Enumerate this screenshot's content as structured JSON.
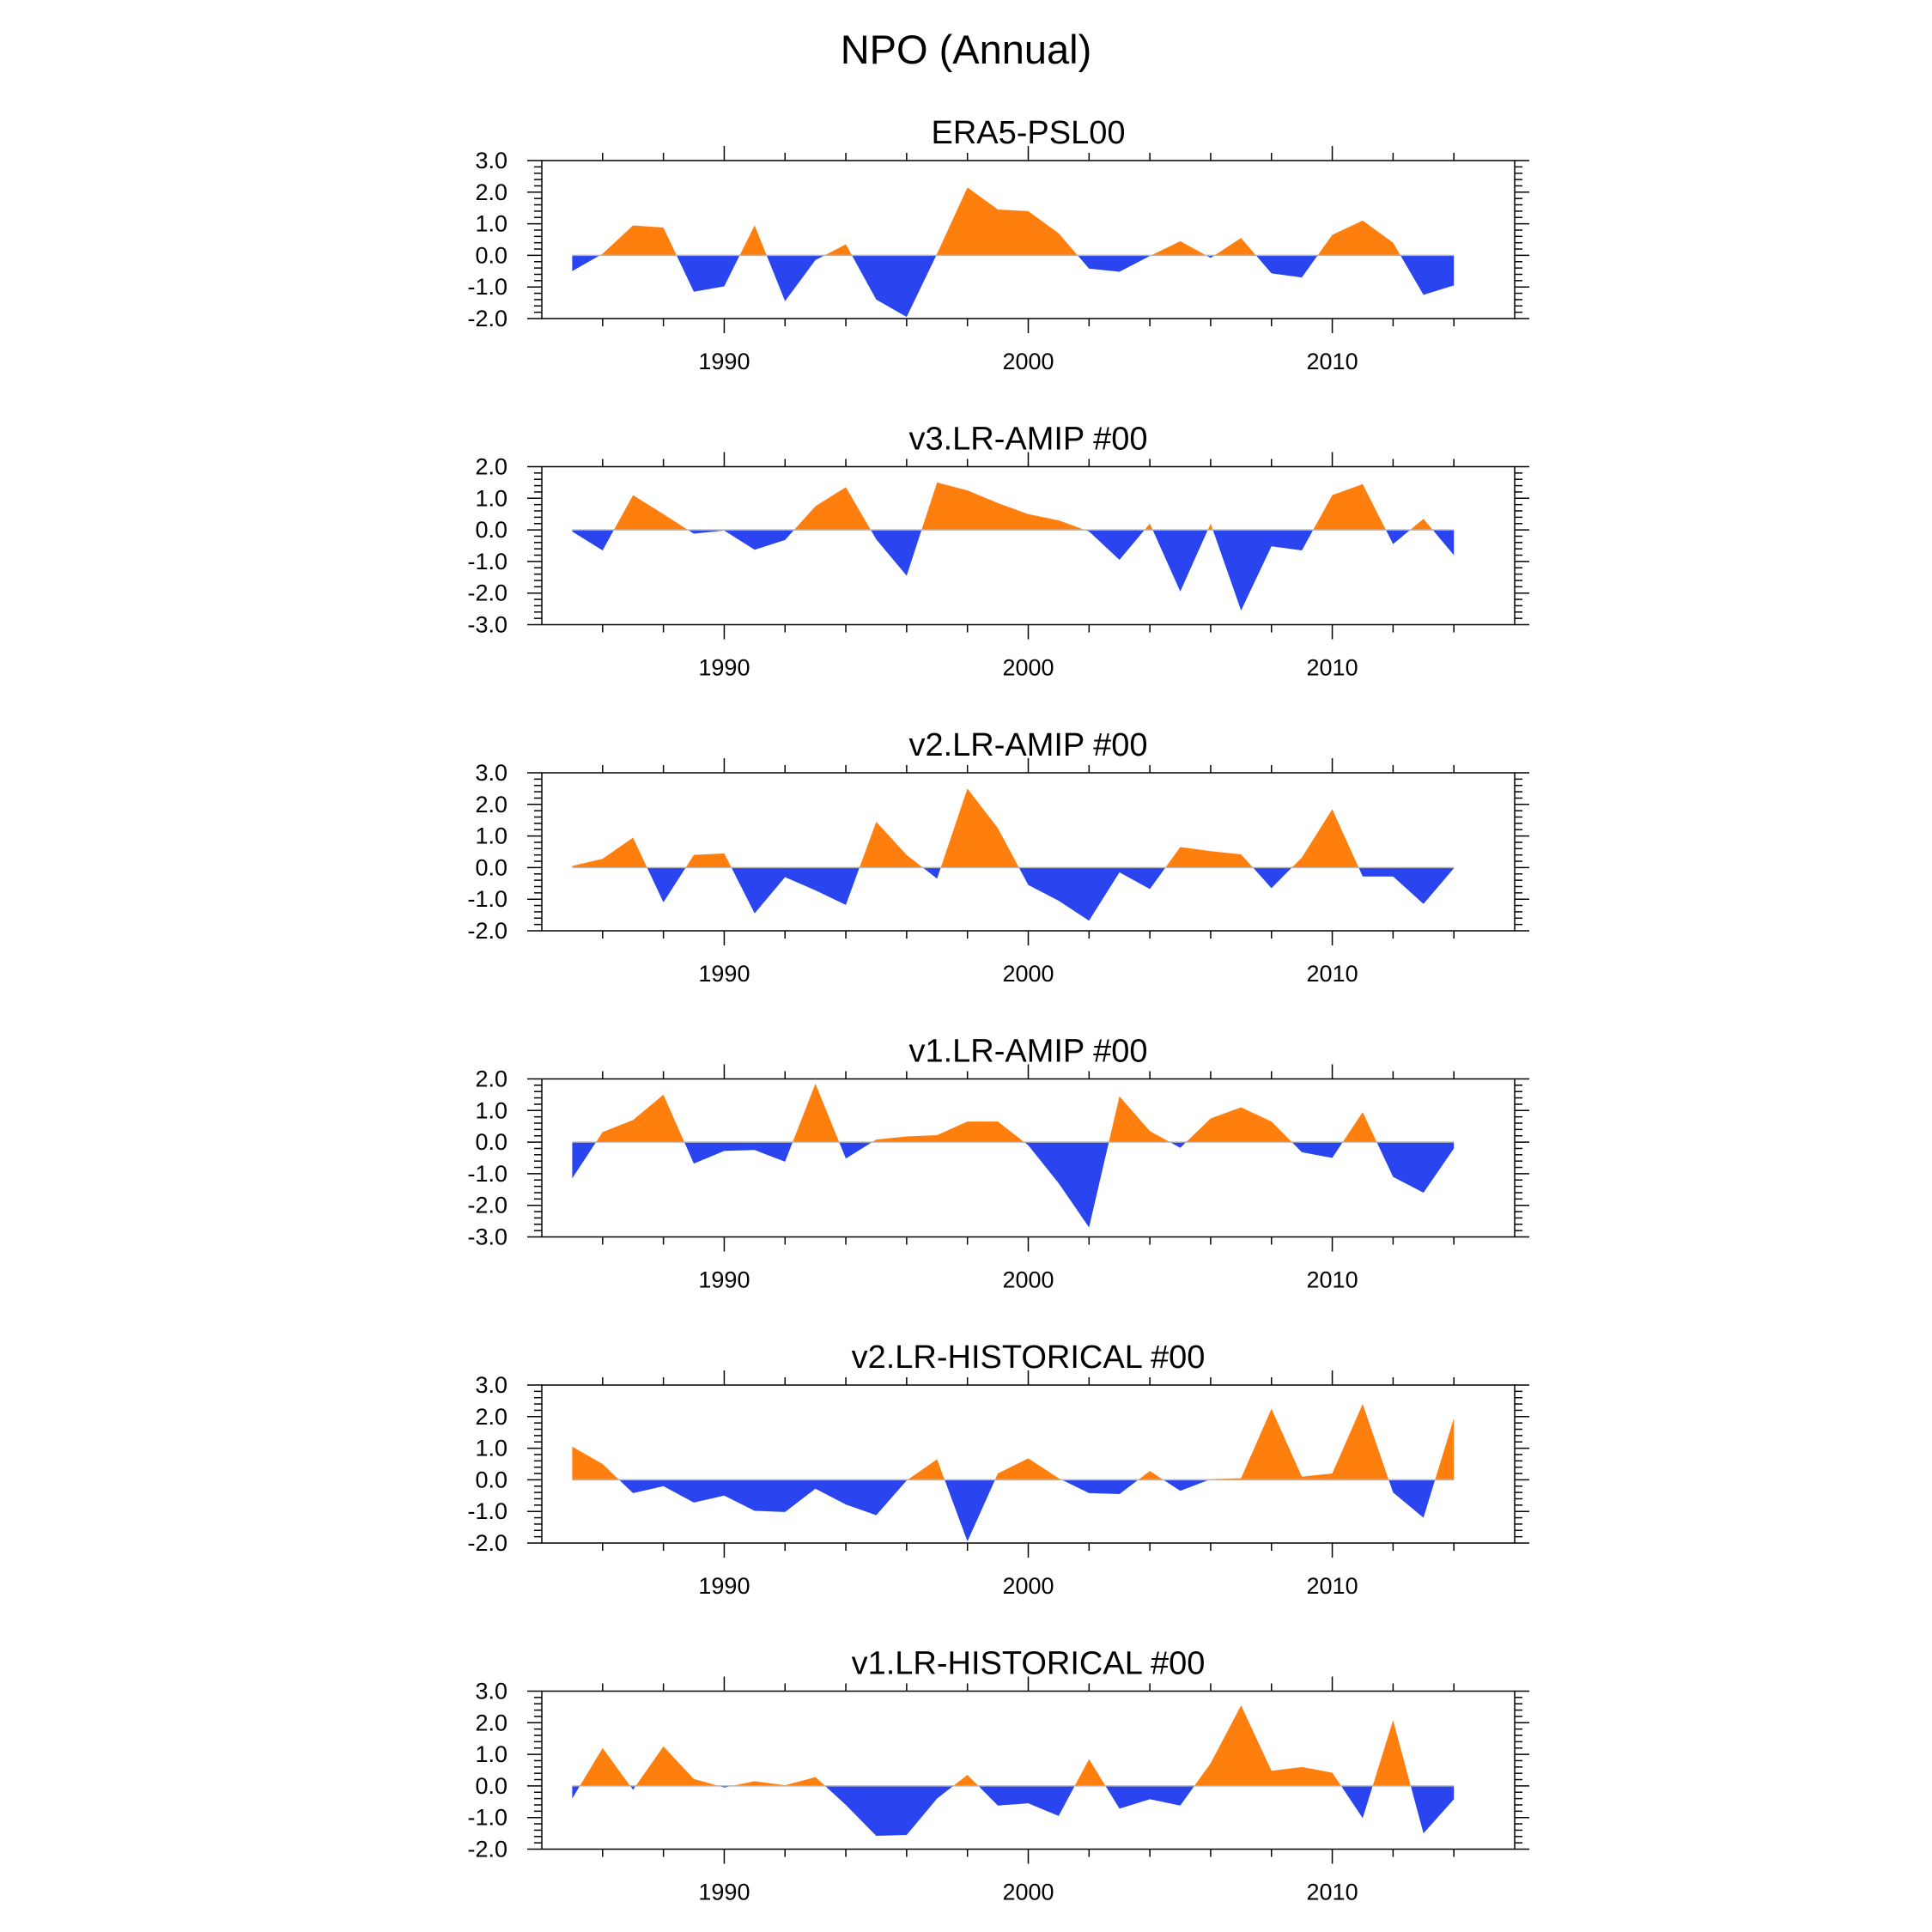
{
  "figure_title": "NPO (Annual)",
  "colors": {
    "positive": "#ff7f0e",
    "negative": "#2a44ef",
    "frame": "#000000",
    "zero_line": "#b4b4b4"
  },
  "chart_data": [
    {
      "type": "area",
      "title": "ERA5-PSL00",
      "xlabel": "",
      "ylabel": "",
      "xlim": [
        1984,
        2016
      ],
      "ylim": [
        -2.0,
        3.0
      ],
      "yticks": [
        "3.0",
        "2.0",
        "1.0",
        "0.0",
        "-1.0",
        "-2.0"
      ],
      "xticks": [
        "1990",
        "2000",
        "2010"
      ],
      "x": [
        1985,
        1986,
        1987,
        1988,
        1989,
        1990,
        1991,
        1992,
        1993,
        1994,
        1995,
        1996,
        1997,
        1998,
        1999,
        2000,
        2001,
        2002,
        2003,
        2004,
        2005,
        2006,
        2007,
        2008,
        2009,
        2010,
        2011,
        2012,
        2013,
        2014
      ],
      "values": [
        -0.5,
        0.05,
        0.95,
        0.88,
        -1.15,
        -0.98,
        0.95,
        -1.45,
        -0.15,
        0.35,
        -1.4,
        -1.95,
        0.05,
        2.15,
        1.45,
        1.4,
        0.7,
        -0.42,
        -0.52,
        -0.02,
        0.45,
        -0.08,
        0.55,
        -0.57,
        -0.7,
        0.65,
        1.1,
        0.4,
        -1.25,
        -0.95
      ]
    },
    {
      "type": "area",
      "title": "v3.LR-AMIP  #00",
      "xlabel": "",
      "ylabel": "",
      "xlim": [
        1984,
        2016
      ],
      "ylim": [
        -3.0,
        2.0
      ],
      "yticks": [
        "2.0",
        "1.0",
        "0.0",
        "-1.0",
        "-2.0",
        "-3.0"
      ],
      "xticks": [
        "1990",
        "2000",
        "2010"
      ],
      "x": [
        1985,
        1986,
        1987,
        1988,
        1989,
        1990,
        1991,
        1992,
        1993,
        1994,
        1995,
        1996,
        1997,
        1998,
        1999,
        2000,
        2001,
        2002,
        2003,
        2004,
        2005,
        2006,
        2007,
        2008,
        2009,
        2010,
        2011,
        2012,
        2013,
        2014
      ],
      "values": [
        -0.05,
        -0.65,
        1.1,
        0.5,
        -0.12,
        -0.02,
        -0.63,
        -0.32,
        0.75,
        1.35,
        -0.3,
        -1.45,
        1.5,
        1.25,
        0.85,
        0.5,
        0.3,
        -0.05,
        -0.95,
        0.2,
        -1.95,
        0.2,
        -2.55,
        -0.52,
        -0.65,
        1.1,
        1.45,
        -0.45,
        0.35,
        -0.8
      ]
    },
    {
      "type": "area",
      "title": "v2.LR-AMIP  #00",
      "xlabel": "",
      "ylabel": "",
      "xlim": [
        1984,
        2016
      ],
      "ylim": [
        -2.0,
        3.0
      ],
      "yticks": [
        "3.0",
        "2.0",
        "1.0",
        "0.0",
        "-1.0",
        "-2.0"
      ],
      "xticks": [
        "1990",
        "2000",
        "2010"
      ],
      "x": [
        1985,
        1986,
        1987,
        1988,
        1989,
        1990,
        1991,
        1992,
        1993,
        1994,
        1995,
        1996,
        1997,
        1998,
        1999,
        2000,
        2001,
        2002,
        2003,
        2004,
        2005,
        2006,
        2007,
        2008,
        2009,
        2010,
        2011,
        2012,
        2013,
        2014
      ],
      "values": [
        0.05,
        0.28,
        0.95,
        -1.1,
        0.4,
        0.45,
        -1.45,
        -0.3,
        -0.72,
        -1.18,
        1.45,
        0.4,
        -0.35,
        2.5,
        1.25,
        -0.55,
        -1.05,
        -1.68,
        -0.15,
        -0.68,
        0.65,
        0.52,
        0.42,
        -0.65,
        0.32,
        1.85,
        -0.28,
        -0.28,
        -1.15,
        -0.02
      ]
    },
    {
      "type": "area",
      "title": "v1.LR-AMIP  #00",
      "xlabel": "",
      "ylabel": "",
      "xlim": [
        1984,
        2016
      ],
      "ylim": [
        -3.0,
        2.0
      ],
      "yticks": [
        "2.0",
        "1.0",
        "0.0",
        "-1.0",
        "-2.0",
        "-3.0"
      ],
      "xticks": [
        "1990",
        "2000",
        "2010"
      ],
      "x": [
        1985,
        1986,
        1987,
        1988,
        1989,
        1990,
        1991,
        1992,
        1993,
        1994,
        1995,
        1996,
        1997,
        1998,
        1999,
        2000,
        2001,
        2002,
        2003,
        2004,
        2005,
        2006,
        2007,
        2008,
        2009,
        2010,
        2011,
        2012,
        2013,
        2014
      ],
      "values": [
        -1.15,
        0.32,
        0.7,
        1.5,
        -0.68,
        -0.28,
        -0.25,
        -0.62,
        1.85,
        -0.52,
        0.08,
        0.18,
        0.22,
        0.65,
        0.65,
        -0.1,
        -1.3,
        -2.7,
        1.45,
        0.35,
        -0.18,
        0.75,
        1.1,
        0.65,
        -0.32,
        -0.5,
        0.95,
        -1.1,
        -1.6,
        -0.2
      ]
    },
    {
      "type": "area",
      "title": "v2.LR-HISTORICAL  #00",
      "xlabel": "",
      "ylabel": "",
      "xlim": [
        1984,
        2016
      ],
      "ylim": [
        -2.0,
        3.0
      ],
      "yticks": [
        "3.0",
        "2.0",
        "1.0",
        "0.0",
        "-1.0",
        "-2.0"
      ],
      "xticks": [
        "1990",
        "2000",
        "2010"
      ],
      "x": [
        1985,
        1986,
        1987,
        1988,
        1989,
        1990,
        1991,
        1992,
        1993,
        1994,
        1995,
        1996,
        1997,
        1998,
        1999,
        2000,
        2001,
        2002,
        2003,
        2004,
        2005,
        2006,
        2007,
        2008,
        2009,
        2010,
        2011,
        2012,
        2013,
        2014
      ],
      "values": [
        1.05,
        0.5,
        -0.42,
        -0.2,
        -0.72,
        -0.5,
        -0.98,
        -1.02,
        -0.28,
        -0.78,
        -1.12,
        -0.02,
        0.65,
        -1.95,
        0.2,
        0.68,
        0.05,
        -0.42,
        -0.45,
        0.28,
        -0.35,
        0.02,
        0.05,
        2.25,
        0.1,
        0.2,
        2.4,
        -0.4,
        -1.2,
        1.95
      ]
    },
    {
      "type": "area",
      "title": "v1.LR-HISTORICAL  #00",
      "xlabel": "",
      "ylabel": "",
      "xlim": [
        1984,
        2016
      ],
      "ylim": [
        -2.0,
        3.0
      ],
      "yticks": [
        "3.0",
        "2.0",
        "1.0",
        "0.0",
        "-1.0",
        "-2.0"
      ],
      "xticks": [
        "1990",
        "2000",
        "2010"
      ],
      "x": [
        1985,
        1986,
        1987,
        1988,
        1989,
        1990,
        1991,
        1992,
        1993,
        1994,
        1995,
        1996,
        1997,
        1998,
        1999,
        2000,
        2001,
        2002,
        2003,
        2004,
        2005,
        2006,
        2007,
        2008,
        2009,
        2010,
        2011,
        2012,
        2013,
        2014
      ],
      "values": [
        -0.4,
        1.2,
        -0.12,
        1.25,
        0.22,
        -0.05,
        0.15,
        0.02,
        0.28,
        -0.6,
        -1.58,
        -1.55,
        -0.4,
        0.35,
        -0.62,
        -0.55,
        -0.95,
        0.85,
        -0.72,
        -0.42,
        -0.62,
        0.72,
        2.55,
        0.48,
        0.6,
        0.42,
        -1.02,
        2.08,
        -1.5,
        -0.42
      ]
    }
  ]
}
